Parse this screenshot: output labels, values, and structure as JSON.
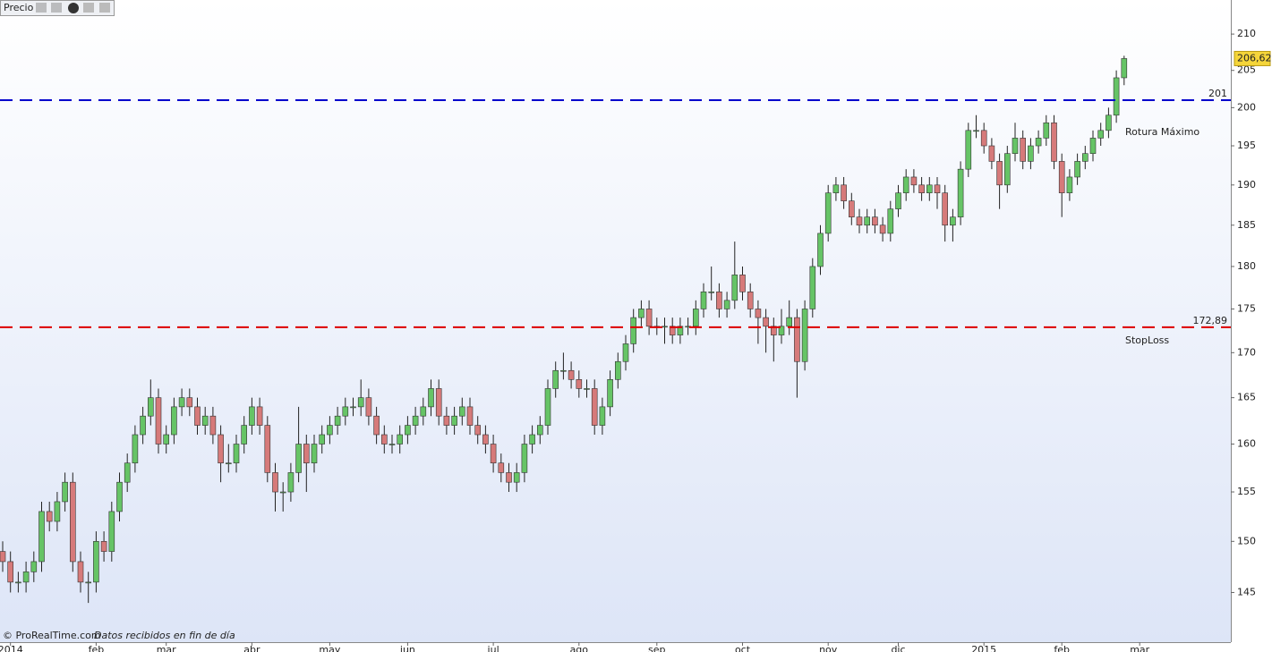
{
  "chart_data": {
    "type": "candlestick",
    "header": "Precio",
    "footer": {
      "source": "© ProRealTime.com",
      "note": "Datos recibidos en fin de día"
    },
    "log_scale": true,
    "up_color": "#66c466",
    "down_color": "#d67a7a",
    "ylim": [
      140.3,
      214.8
    ],
    "yticks": [
      145,
      150,
      155,
      160,
      165,
      170,
      175,
      180,
      185,
      190,
      195,
      200,
      205,
      210
    ],
    "xticks": [
      {
        "value": 1,
        "label": "2014"
      },
      {
        "value": 12,
        "label": "feb"
      },
      {
        "value": 21,
        "label": "mar"
      },
      {
        "value": 32,
        "label": "abr"
      },
      {
        "value": 42,
        "label": "may"
      },
      {
        "value": 52,
        "label": "jun"
      },
      {
        "value": 63,
        "label": "jul"
      },
      {
        "value": 74,
        "label": "ago"
      },
      {
        "value": 84,
        "label": "sep"
      },
      {
        "value": 95,
        "label": "oct"
      },
      {
        "value": 106,
        "label": "nov"
      },
      {
        "value": 115,
        "label": "dic"
      },
      {
        "value": 126,
        "label": "2015"
      },
      {
        "value": 136,
        "label": "feb"
      },
      {
        "value": 146,
        "label": "mar"
      }
    ],
    "lines": [
      {
        "value": 201,
        "label": "201",
        "note": "Rotura Máximo",
        "color": "#0000cc"
      },
      {
        "value": 172.89,
        "label": "172,89",
        "note": "StopLoss",
        "color": "#dd0000"
      }
    ],
    "last_price": {
      "value": 206.62,
      "label": "206,62"
    },
    "candles": [
      [
        149,
        150,
        147,
        148
      ],
      [
        148,
        149,
        145,
        146
      ],
      [
        146,
        147,
        145,
        146
      ],
      [
        146,
        148,
        145,
        147
      ],
      [
        147,
        149,
        146,
        148
      ],
      [
        148,
        154,
        147,
        153
      ],
      [
        153,
        154,
        151,
        152
      ],
      [
        152,
        155,
        151,
        154
      ],
      [
        154,
        157,
        153,
        156
      ],
      [
        156,
        157,
        147,
        148
      ],
      [
        148,
        149,
        145,
        146
      ],
      [
        146,
        147,
        144,
        146
      ],
      [
        146,
        151,
        145,
        150
      ],
      [
        150,
        151,
        148,
        149
      ],
      [
        149,
        154,
        148,
        153
      ],
      [
        153,
        157,
        152,
        156
      ],
      [
        156,
        159,
        155,
        158
      ],
      [
        158,
        162,
        157,
        161
      ],
      [
        161,
        164,
        160,
        163
      ],
      [
        163,
        167,
        162,
        165
      ],
      [
        165,
        166,
        159,
        160
      ],
      [
        160,
        162,
        159,
        161
      ],
      [
        161,
        165,
        160,
        164
      ],
      [
        164,
        166,
        163,
        165
      ],
      [
        165,
        166,
        163,
        164
      ],
      [
        164,
        165,
        161,
        162
      ],
      [
        162,
        164,
        161,
        163
      ],
      [
        163,
        164,
        160,
        161
      ],
      [
        161,
        162,
        156,
        158
      ],
      [
        158,
        160,
        157,
        158
      ],
      [
        158,
        161,
        157,
        160
      ],
      [
        160,
        163,
        159,
        162
      ],
      [
        162,
        165,
        161,
        164
      ],
      [
        164,
        165,
        161,
        162
      ],
      [
        162,
        163,
        156,
        157
      ],
      [
        157,
        158,
        153,
        155
      ],
      [
        155,
        156,
        153,
        155
      ],
      [
        155,
        158,
        154,
        157
      ],
      [
        157,
        164,
        156,
        160
      ],
      [
        160,
        161,
        155,
        158
      ],
      [
        158,
        161,
        157,
        160
      ],
      [
        160,
        162,
        159,
        161
      ],
      [
        161,
        163,
        160,
        162
      ],
      [
        162,
        164,
        161,
        163
      ],
      [
        163,
        165,
        162,
        164
      ],
      [
        164,
        165,
        163,
        164
      ],
      [
        164,
        167,
        163,
        165
      ],
      [
        165,
        166,
        162,
        163
      ],
      [
        163,
        164,
        160,
        161
      ],
      [
        161,
        162,
        159,
        160
      ],
      [
        160,
        161,
        159,
        160
      ],
      [
        160,
        162,
        159,
        161
      ],
      [
        161,
        163,
        160,
        162
      ],
      [
        162,
        164,
        161,
        163
      ],
      [
        163,
        165,
        162,
        164
      ],
      [
        164,
        167,
        163,
        166
      ],
      [
        166,
        167,
        162,
        163
      ],
      [
        163,
        164,
        161,
        162
      ],
      [
        162,
        164,
        161,
        163
      ],
      [
        163,
        165,
        162,
        164
      ],
      [
        164,
        165,
        161,
        162
      ],
      [
        162,
        163,
        160,
        161
      ],
      [
        161,
        162,
        159,
        160
      ],
      [
        160,
        161,
        157,
        158
      ],
      [
        158,
        159,
        156,
        157
      ],
      [
        157,
        158,
        155,
        156
      ],
      [
        156,
        158,
        155,
        157
      ],
      [
        157,
        161,
        156,
        160
      ],
      [
        160,
        162,
        159,
        161
      ],
      [
        161,
        163,
        160,
        162
      ],
      [
        162,
        167,
        161,
        166
      ],
      [
        166,
        169,
        165,
        168
      ],
      [
        168,
        170,
        167,
        168
      ],
      [
        168,
        169,
        166,
        167
      ],
      [
        167,
        168,
        165,
        166
      ],
      [
        166,
        167,
        165,
        166
      ],
      [
        166,
        167,
        161,
        162
      ],
      [
        162,
        165,
        161,
        164
      ],
      [
        164,
        168,
        163,
        167
      ],
      [
        167,
        170,
        166,
        169
      ],
      [
        169,
        172,
        168,
        171
      ],
      [
        171,
        175,
        170,
        174
      ],
      [
        174,
        176,
        173,
        175
      ],
      [
        175,
        176,
        172,
        173
      ],
      [
        173,
        174,
        172,
        173
      ],
      [
        173,
        174,
        171,
        173
      ],
      [
        173,
        174,
        171,
        172
      ],
      [
        172,
        174,
        171,
        173
      ],
      [
        173,
        174,
        172,
        173
      ],
      [
        173,
        176,
        172,
        175
      ],
      [
        175,
        178,
        174,
        177
      ],
      [
        177,
        180,
        176,
        177
      ],
      [
        177,
        178,
        174,
        175
      ],
      [
        175,
        177,
        174,
        176
      ],
      [
        176,
        183,
        175,
        179
      ],
      [
        179,
        180,
        176,
        177
      ],
      [
        177,
        178,
        174,
        175
      ],
      [
        175,
        176,
        171,
        174
      ],
      [
        174,
        175,
        170,
        173
      ],
      [
        173,
        174,
        169,
        172
      ],
      [
        172,
        175,
        171,
        173
      ],
      [
        173,
        176,
        172,
        174
      ],
      [
        174,
        175,
        165,
        169
      ],
      [
        169,
        176,
        168,
        175
      ],
      [
        175,
        181,
        174,
        180
      ],
      [
        180,
        185,
        179,
        184
      ],
      [
        184,
        190,
        183,
        189
      ],
      [
        189,
        191,
        188,
        190
      ],
      [
        190,
        191,
        187,
        188
      ],
      [
        188,
        189,
        185,
        186
      ],
      [
        186,
        187,
        184,
        185
      ],
      [
        185,
        187,
        184,
        186
      ],
      [
        186,
        187,
        184,
        185
      ],
      [
        185,
        186,
        183,
        184
      ],
      [
        184,
        188,
        183,
        187
      ],
      [
        187,
        190,
        186,
        189
      ],
      [
        189,
        192,
        188,
        191
      ],
      [
        191,
        192,
        189,
        190
      ],
      [
        190,
        191,
        188,
        189
      ],
      [
        189,
        191,
        188,
        190
      ],
      [
        190,
        191,
        187,
        189
      ],
      [
        189,
        190,
        183,
        185
      ],
      [
        185,
        187,
        183,
        186
      ],
      [
        186,
        193,
        185,
        192
      ],
      [
        192,
        198,
        191,
        197
      ],
      [
        197,
        199,
        196,
        197
      ],
      [
        197,
        198,
        194,
        195
      ],
      [
        195,
        196,
        192,
        193
      ],
      [
        193,
        194,
        187,
        190
      ],
      [
        190,
        195,
        189,
        194
      ],
      [
        194,
        198,
        193,
        196
      ],
      [
        196,
        197,
        192,
        193
      ],
      [
        193,
        196,
        192,
        195
      ],
      [
        195,
        197,
        194,
        196
      ],
      [
        196,
        199,
        195,
        198
      ],
      [
        198,
        199,
        192,
        193
      ],
      [
        193,
        194,
        186,
        189
      ],
      [
        189,
        192,
        188,
        191
      ],
      [
        191,
        194,
        190,
        193
      ],
      [
        193,
        195,
        192,
        194
      ],
      [
        194,
        197,
        193,
        196
      ],
      [
        196,
        198,
        195,
        197
      ],
      [
        197,
        200,
        196,
        199
      ],
      [
        199,
        205,
        198,
        204
      ],
      [
        204,
        207,
        203,
        206.62
      ]
    ]
  }
}
